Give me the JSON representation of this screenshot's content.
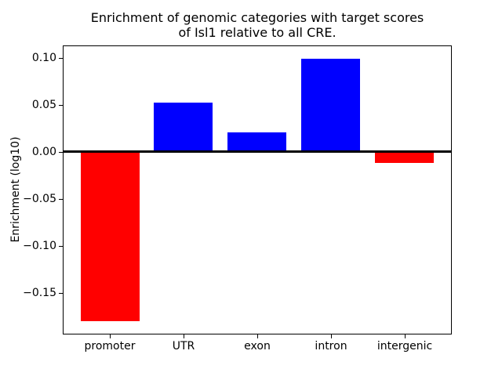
{
  "title": {
    "line1": "Enrichment of genomic categories with target scores",
    "line2": "of Isl1 relative to all CRE."
  },
  "chart_data": {
    "type": "bar",
    "title": "Enrichment of genomic categories with target scores\nof Isl1 relative to all CRE.",
    "xlabel": "",
    "ylabel": "Enrichment (log10)",
    "categories": [
      "promoter",
      "UTR",
      "exon",
      "intron",
      "intergenic"
    ],
    "values": [
      -0.18,
      0.052,
      0.021,
      0.099,
      -0.012
    ],
    "bar_colors": [
      "#ff0000",
      "#0000ff",
      "#0000ff",
      "#0000ff",
      "#ff0000"
    ],
    "bar_width_units": 0.8,
    "ylim": [
      -0.194,
      0.113
    ],
    "xlim": [
      -0.64,
      4.64
    ],
    "yticks": [
      {
        "value": 0.1,
        "label": "0.10"
      },
      {
        "value": 0.05,
        "label": "0.05"
      },
      {
        "value": 0.0,
        "label": "0.00"
      },
      {
        "value": -0.05,
        "label": "−0.05"
      },
      {
        "value": -0.1,
        "label": "−0.10"
      },
      {
        "value": -0.15,
        "label": "−0.15"
      }
    ],
    "zero_line": {
      "value": 0.0,
      "color": "#000000"
    },
    "grid": false,
    "legend": null,
    "colors": {
      "positive": "#0000ff",
      "negative": "#ff0000",
      "axis": "#000000",
      "background": "#ffffff"
    }
  }
}
